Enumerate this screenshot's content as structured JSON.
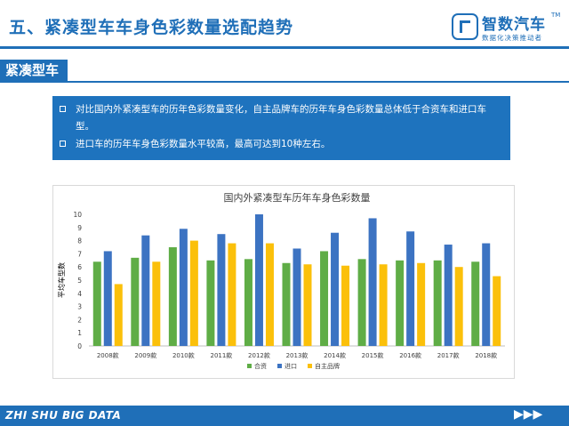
{
  "page": {
    "title": "五、紧凑型车车身色彩数量选配趋势",
    "section_tag": "紧凑型车",
    "bullets": [
      "对比国内外紧凑型车的历年色彩数量变化，自主品牌车的历年车身色彩数量总体低于合资车和进口车型。",
      "进口车的历年车身色彩数量水平较高，最高可达到10种左右。"
    ],
    "footer": "ZHI SHU BIG DATA"
  },
  "logo": {
    "name": "智数汽车",
    "tm": "TM",
    "slogan": "数据化决策推动者"
  },
  "colors": {
    "brand": "#1f6fb8",
    "hezi": "#5fad46",
    "jinkou": "#3c73c2",
    "zizhu": "#fbc00a"
  },
  "chart_data": {
    "type": "bar",
    "title": "国内外紧凑型车历年车身色彩数量",
    "ylabel": "平均车型数",
    "xlabel": "",
    "ylim": [
      0,
      10
    ],
    "yticks": [
      "0",
      "1",
      "2",
      "3",
      "4",
      "5",
      "6",
      "7",
      "8",
      "9",
      "10"
    ],
    "grid": false,
    "legend_position": "bottom",
    "categories": [
      "2008款",
      "2009款",
      "2010款",
      "2011款",
      "2012款",
      "2013款",
      "2014款",
      "2015款",
      "2016款",
      "2017款",
      "2018款"
    ],
    "series": [
      {
        "name": "合资",
        "color": "#5fad46",
        "values": [
          6.4,
          6.7,
          7.5,
          6.5,
          6.6,
          6.3,
          7.2,
          6.6,
          6.5,
          6.5,
          6.4
        ]
      },
      {
        "name": "进口",
        "color": "#3c73c2",
        "values": [
          7.2,
          8.4,
          8.9,
          8.5,
          10.0,
          7.4,
          8.6,
          9.7,
          8.7,
          7.7,
          7.8
        ]
      },
      {
        "name": "自主品牌",
        "color": "#fbc00a",
        "values": [
          4.7,
          6.4,
          8.0,
          7.8,
          7.8,
          6.2,
          6.1,
          6.2,
          6.3,
          6.0,
          5.3
        ]
      }
    ]
  }
}
